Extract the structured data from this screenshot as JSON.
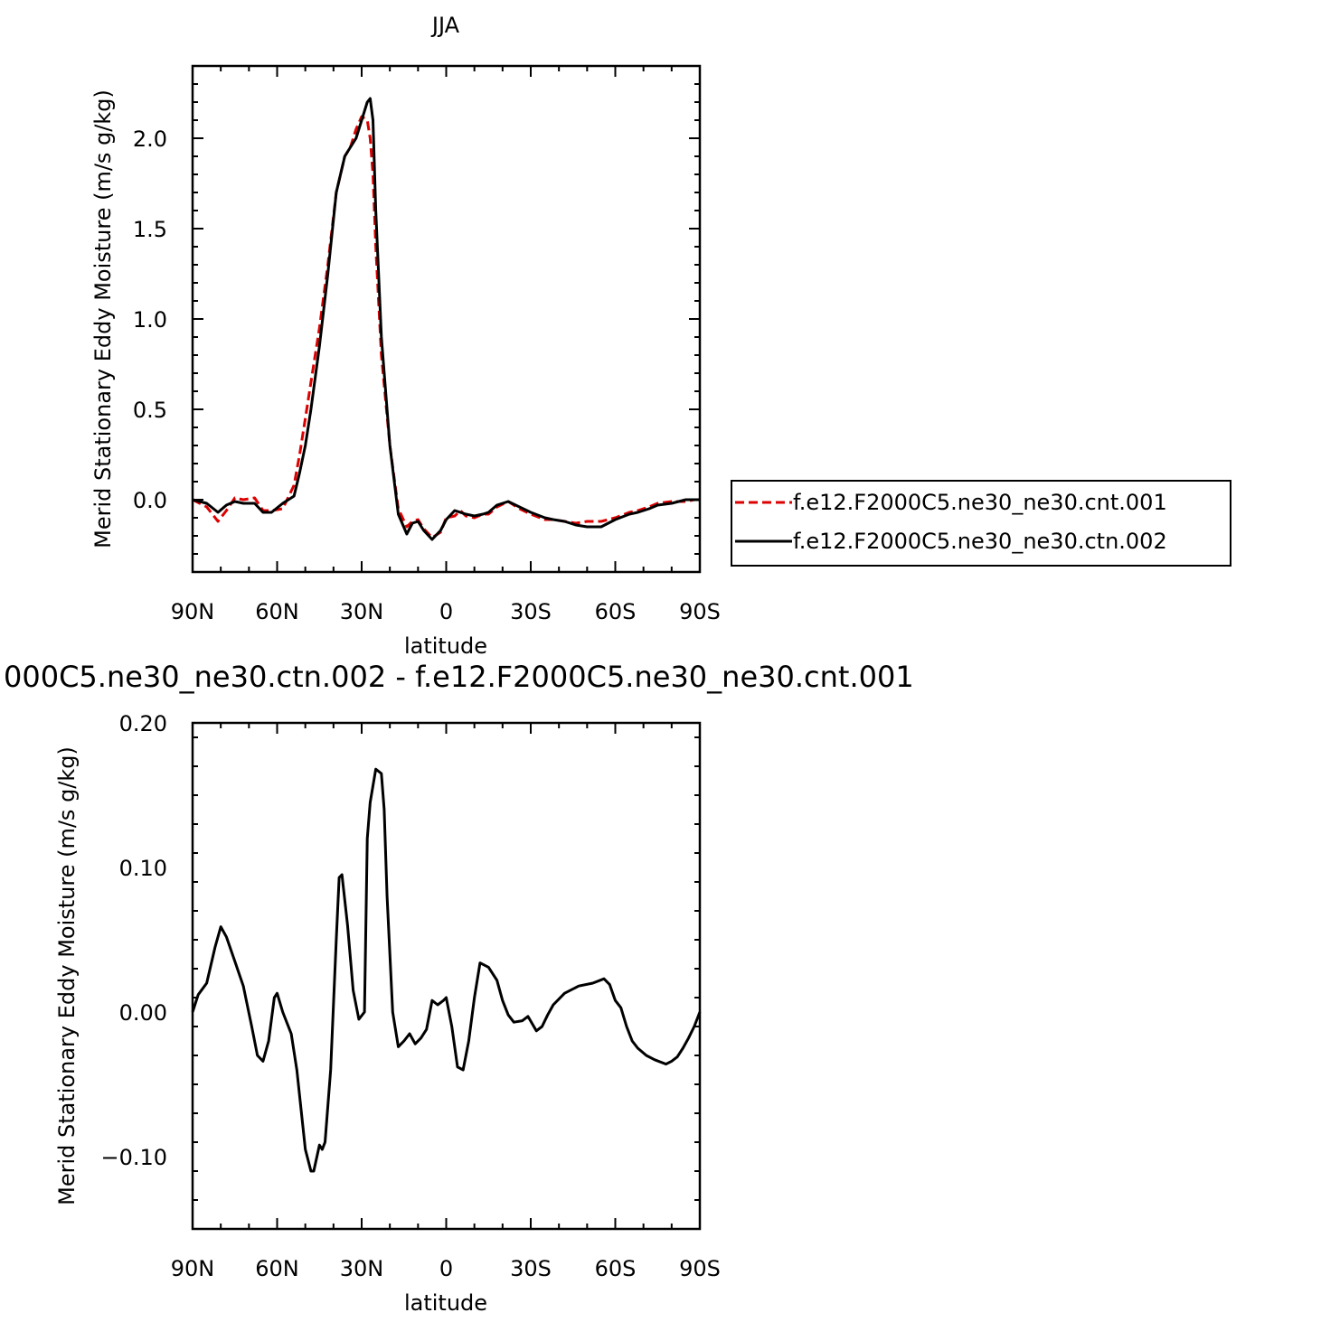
{
  "chart_data": [
    {
      "type": "line",
      "title": "JJA",
      "xlabel": "latitude",
      "ylabel": "Merid Stationary Eddy Moisture (m/s g/kg)",
      "xlim": [
        90,
        -90
      ],
      "ylim": [
        -0.4,
        2.4
      ],
      "xticks": [
        90,
        60,
        30,
        0,
        -30,
        -60,
        -90
      ],
      "xticklabels": [
        "90N",
        "60N",
        "30N",
        "0",
        "30S",
        "60S",
        "90S"
      ],
      "yticks": [
        0.0,
        0.5,
        1.0,
        1.5,
        2.0
      ],
      "yticklabels": [
        "0.0",
        "0.5",
        "1.0",
        "1.5",
        "2.0"
      ],
      "series": [
        {
          "name": "f.e12.F2000C5.ne30_ne30.cnt.001",
          "color": "#dd0000",
          "style": "dashed",
          "x": [
            90,
            85,
            81,
            78,
            75,
            72,
            68,
            65,
            62,
            58,
            54,
            52,
            50,
            48,
            45,
            42,
            39,
            36,
            34,
            32,
            30,
            28,
            27,
            26,
            25,
            23,
            20,
            17,
            14,
            12,
            10,
            8,
            5,
            2,
            0,
            -3,
            -5,
            -7,
            -10,
            -13,
            -15,
            -18,
            -22,
            -26,
            -30,
            -35,
            -38,
            -42,
            -46,
            -50,
            -55,
            -60,
            -65,
            -68,
            -72,
            -75,
            -80,
            -85,
            -88,
            -90
          ],
          "y": [
            0.0,
            -0.04,
            -0.12,
            -0.06,
            0.01,
            0.0,
            0.01,
            -0.06,
            -0.06,
            -0.05,
            0.08,
            0.25,
            0.45,
            0.65,
            0.95,
            1.3,
            1.7,
            1.9,
            1.95,
            2.05,
            2.12,
            2.1,
            2.0,
            1.8,
            1.4,
            0.8,
            0.3,
            -0.05,
            -0.15,
            -0.12,
            -0.11,
            -0.16,
            -0.21,
            -0.18,
            -0.1,
            -0.09,
            -0.06,
            -0.09,
            -0.1,
            -0.08,
            -0.08,
            -0.04,
            -0.01,
            -0.05,
            -0.08,
            -0.11,
            -0.11,
            -0.12,
            -0.13,
            -0.12,
            -0.12,
            -0.1,
            -0.07,
            -0.06,
            -0.04,
            -0.02,
            -0.01,
            -0.01,
            0.0,
            0.0
          ]
        },
        {
          "name": "f.e12.F2000C5.ne30_ne30.ctn.002",
          "color": "#000000",
          "style": "solid",
          "x": [
            90,
            85,
            81,
            78,
            75,
            72,
            68,
            65,
            62,
            58,
            54,
            52,
            50,
            48,
            45,
            42,
            39,
            36,
            34,
            32,
            30,
            28,
            27,
            26,
            25,
            23,
            20,
            17,
            14,
            12,
            10,
            8,
            5,
            2,
            0,
            -3,
            -5,
            -7,
            -10,
            -13,
            -15,
            -18,
            -22,
            -26,
            -30,
            -35,
            -38,
            -42,
            -46,
            -50,
            -55,
            -60,
            -65,
            -68,
            -72,
            -75,
            -80,
            -85,
            -88,
            -90
          ],
          "y": [
            0.0,
            -0.02,
            -0.07,
            -0.03,
            -0.01,
            -0.02,
            -0.02,
            -0.07,
            -0.07,
            -0.02,
            0.02,
            0.15,
            0.3,
            0.5,
            0.85,
            1.25,
            1.7,
            1.9,
            1.95,
            2.0,
            2.1,
            2.2,
            2.22,
            2.1,
            1.6,
            0.9,
            0.3,
            -0.08,
            -0.19,
            -0.13,
            -0.12,
            -0.17,
            -0.22,
            -0.17,
            -0.11,
            -0.06,
            -0.07,
            -0.08,
            -0.09,
            -0.08,
            -0.07,
            -0.03,
            -0.01,
            -0.04,
            -0.07,
            -0.1,
            -0.11,
            -0.12,
            -0.14,
            -0.15,
            -0.15,
            -0.11,
            -0.08,
            -0.07,
            -0.05,
            -0.03,
            -0.02,
            0.0,
            0.0,
            0.0
          ]
        }
      ],
      "legend": {
        "placement": "right",
        "entries": [
          "f.e12.F2000C5.ne30_ne30.cnt.001",
          "f.e12.F2000C5.ne30_ne30.ctn.002"
        ]
      },
      "grid": false
    },
    {
      "type": "line",
      "title": "000C5.ne30_ne30.ctn.002 - f.e12.F2000C5.ne30_ne30.cnt.001",
      "xlabel": "latitude",
      "ylabel": "Merid Stationary Eddy Moisture (m/s g/kg)",
      "xlim": [
        90,
        -90
      ],
      "ylim": [
        -0.15,
        0.2
      ],
      "xticks": [
        90,
        60,
        30,
        0,
        -30,
        -60,
        -90
      ],
      "xticklabels": [
        "90N",
        "60N",
        "30N",
        "0",
        "30S",
        "60S",
        "90S"
      ],
      "yticks": [
        -0.1,
        0.0,
        0.1,
        0.2
      ],
      "yticklabels": [
        "-0.10",
        "0.00",
        "0.10",
        "0.20"
      ],
      "series": [
        {
          "color": "#000000",
          "style": "solid",
          "x": [
            90,
            88,
            85,
            82,
            80,
            78,
            75,
            72,
            69,
            67,
            65,
            63,
            61,
            60,
            58,
            55,
            53,
            50,
            48,
            47,
            45,
            44,
            43,
            41,
            39,
            38,
            37,
            35,
            33,
            31,
            29,
            28,
            27,
            25,
            23,
            22,
            21,
            19,
            17,
            15,
            13,
            11,
            9,
            7,
            5,
            3,
            1,
            0,
            -2,
            -4,
            -6,
            -8,
            -10,
            -12,
            -15,
            -18,
            -20,
            -22,
            -24,
            -27,
            -29,
            -32,
            -34,
            -36,
            -38,
            -42,
            -47,
            -52,
            -56,
            -58,
            -60,
            -62,
            -64,
            -66,
            -68,
            -71,
            -74,
            -78,
            -80,
            -82,
            -84,
            -86,
            -88,
            -90
          ],
          "y": [
            0.0,
            0.012,
            0.02,
            0.045,
            0.059,
            0.052,
            0.035,
            0.018,
            -0.01,
            -0.03,
            -0.034,
            -0.02,
            0.01,
            0.013,
            0.0,
            -0.015,
            -0.04,
            -0.095,
            -0.11,
            -0.11,
            -0.092,
            -0.095,
            -0.09,
            -0.04,
            0.05,
            0.093,
            0.095,
            0.06,
            0.015,
            -0.005,
            0.0,
            0.12,
            0.145,
            0.168,
            0.165,
            0.14,
            0.08,
            0.0,
            -0.024,
            -0.02,
            -0.015,
            -0.022,
            -0.018,
            -0.012,
            0.008,
            0.005,
            0.008,
            0.01,
            -0.01,
            -0.038,
            -0.04,
            -0.02,
            0.01,
            0.034,
            0.031,
            0.022,
            0.008,
            -0.002,
            -0.007,
            -0.006,
            -0.003,
            -0.013,
            -0.01,
            -0.002,
            0.005,
            0.013,
            0.018,
            0.02,
            0.023,
            0.019,
            0.008,
            0.003,
            -0.01,
            -0.02,
            -0.025,
            -0.03,
            -0.033,
            -0.036,
            -0.034,
            -0.031,
            -0.025,
            -0.018,
            -0.01,
            0.0
          ]
        }
      ],
      "grid": false
    }
  ]
}
